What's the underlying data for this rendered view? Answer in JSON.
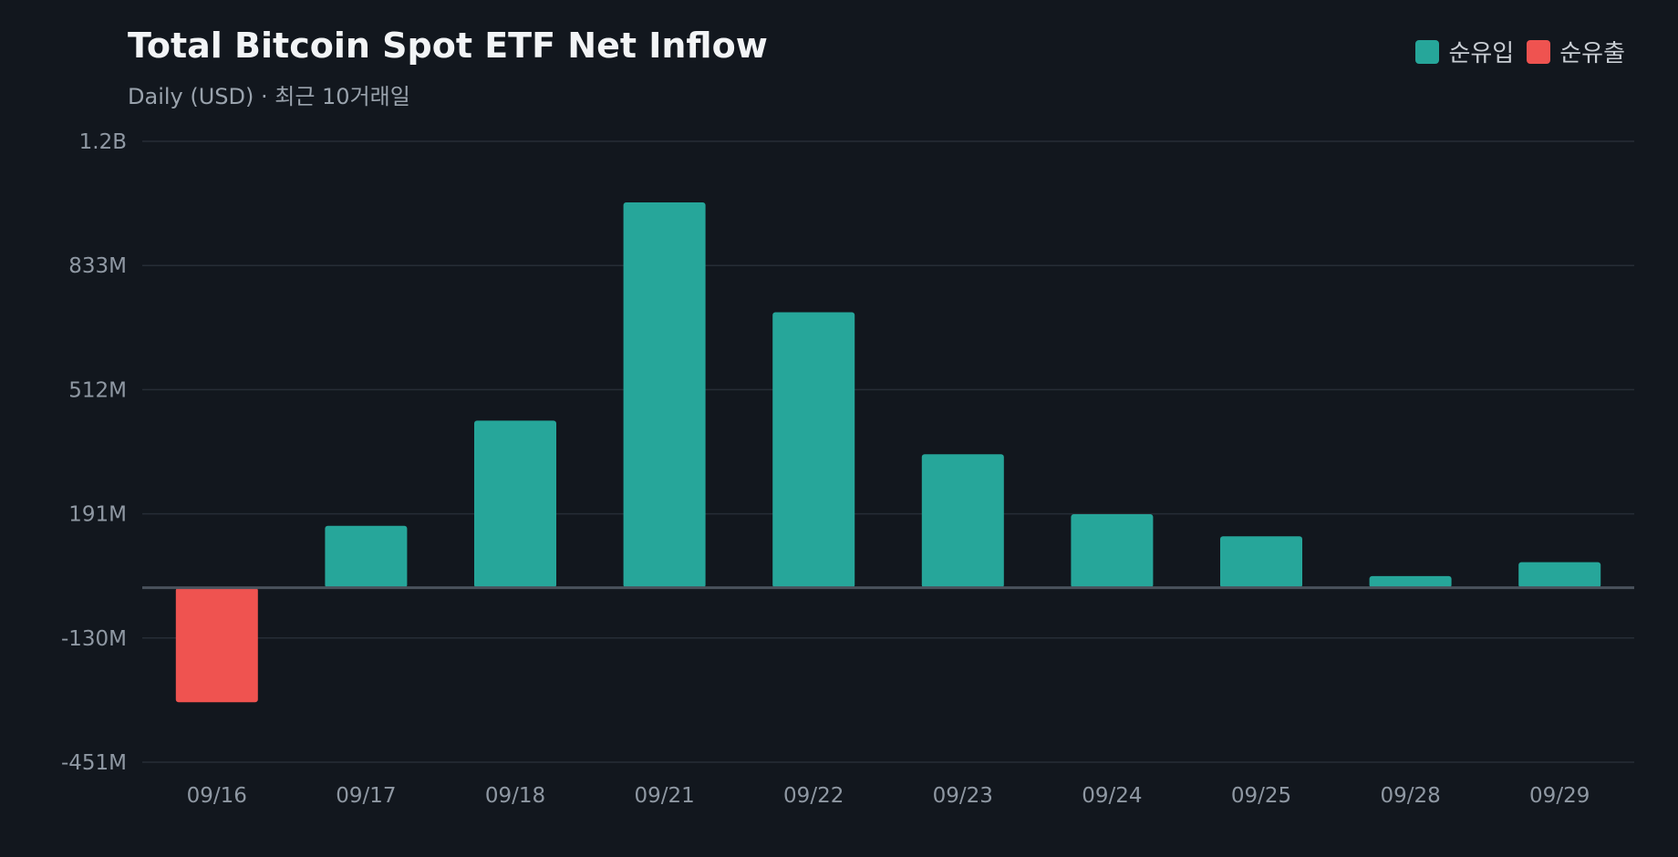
{
  "chart_data": {
    "type": "bar",
    "title": "Total Bitcoin Spot ETF Net Inflow",
    "subtitle": "Daily (USD) · 최근 10거래일",
    "legend": {
      "placement": "top-right",
      "items": [
        {
          "label": "순유입",
          "color": "#26a69a"
        },
        {
          "label": "순유출",
          "color": "#ef5350"
        }
      ]
    },
    "categories": [
      "09/16",
      "09/17",
      "09/18",
      "09/21",
      "09/22",
      "09/23",
      "09/24",
      "09/25",
      "09/28",
      "09/29"
    ],
    "values": [
      -296000000,
      160000000,
      432000000,
      996000000,
      712000000,
      345000000,
      190000000,
      133000000,
      30000000,
      66000000
    ],
    "value_unit": "USD",
    "ylim": [
      -451000000,
      1154000000
    ],
    "yticks": [
      {
        "value": 1154000000,
        "label": "1.2B"
      },
      {
        "value": 833000000,
        "label": "833M"
      },
      {
        "value": 512000000,
        "label": "512M"
      },
      {
        "value": 191000000,
        "label": "191M"
      },
      {
        "value": -130000000,
        "label": "-130M"
      },
      {
        "value": -451000000,
        "label": "-451M"
      }
    ],
    "grid": true,
    "colors": {
      "positive": "#26a69a",
      "negative": "#ef5350",
      "background": "#12171e",
      "grid": "#262d36",
      "zero_line": "#4a525c"
    }
  }
}
